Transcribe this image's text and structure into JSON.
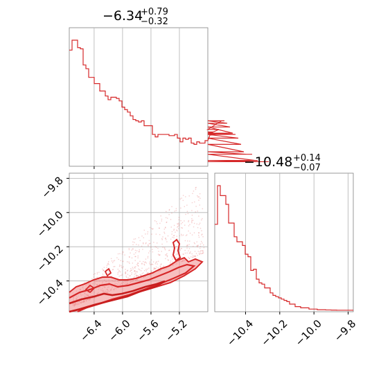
{
  "chart_data": [
    {
      "type": "histogram",
      "panel": "top-left marginal",
      "title": {
        "value": "−6.34",
        "plus": "+0.79",
        "minus": "−0.32"
      },
      "xlim": [
        -6.75,
        -4.8
      ],
      "xticks": [
        -6.4,
        -6.0,
        -5.6,
        -5.2
      ],
      "bin_edges_start": -6.75,
      "bin_width": 0.039,
      "counts": [
        92,
        100,
        100,
        94,
        93,
        80,
        77,
        70,
        70,
        65,
        65,
        59,
        59,
        55,
        52,
        54,
        54,
        53,
        51,
        46,
        44,
        42,
        39,
        36,
        35,
        34,
        35,
        31,
        31,
        31,
        24,
        22,
        24,
        24,
        24,
        24,
        23,
        23,
        24,
        21,
        18,
        21,
        20,
        21,
        17,
        16,
        18,
        17,
        17,
        19,
        19,
        25,
        26,
        24,
        28,
        35,
        35,
        33,
        30,
        25,
        24,
        21,
        16,
        10,
        8,
        8,
        8,
        3,
        3,
        2,
        2,
        2,
        2
      ]
    },
    {
      "type": "contour2d",
      "panel": "bottom-left joint",
      "xlim": [
        -6.75,
        -4.8
      ],
      "ylim": [
        -10.58,
        -9.77
      ],
      "xticks": [
        -6.4,
        -6.0,
        -5.6,
        -5.2
      ],
      "xtick_labels": [
        "−6.4",
        "−6.0",
        "−5.6",
        "−5.2"
      ],
      "yticks": [
        -9.8,
        -10.0,
        -10.2,
        -10.4
      ],
      "ytick_labels": [
        "−9.8",
        "−10.0",
        "−10.2",
        "−10.4"
      ],
      "levels": 3,
      "color": "#d62728"
    },
    {
      "type": "histogram",
      "panel": "bottom-right marginal",
      "title": {
        "value": "−10.48",
        "plus": "+0.14",
        "minus": "−0.07"
      },
      "xlim": [
        -10.58,
        -9.77
      ],
      "xticks": [
        -10.4,
        -10.2,
        -10.0,
        -9.8
      ],
      "xtick_labels": [
        "−10.4",
        "−10.2",
        "−10.0",
        "−9.8"
      ],
      "bin_edges_start": -10.58,
      "bin_width": 0.0162,
      "counts": [
        69,
        100,
        92,
        92,
        85,
        70,
        70,
        59,
        55,
        55,
        52,
        45,
        43,
        32,
        33,
        25,
        22,
        21,
        18,
        18,
        14,
        12,
        11,
        10,
        9,
        8,
        7,
        5,
        5,
        3,
        3,
        2,
        2,
        2,
        1,
        1,
        1,
        0.5,
        0.5,
        0.5,
        0.3,
        0.3,
        0.2,
        0.2,
        0.1,
        0.1,
        0.1,
        0.1,
        0.1,
        0.1
      ]
    }
  ]
}
